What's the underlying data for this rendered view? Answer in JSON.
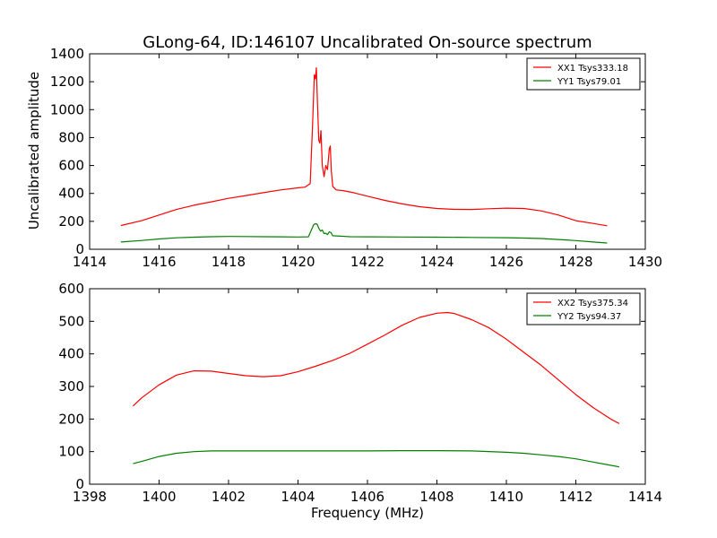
{
  "chart_data": [
    {
      "type": "line",
      "title": "GLong-64, ID:146107 Uncalibrated On-source spectrum",
      "xlabel": "",
      "ylabel": "Uncalibrated amplitude",
      "xlim": [
        1414,
        1430
      ],
      "ylim": [
        0,
        1400
      ],
      "xticks": [
        "1414",
        "1416",
        "1418",
        "1420",
        "1422",
        "1424",
        "1426",
        "1428",
        "1430"
      ],
      "yticks": [
        "0",
        "200",
        "400",
        "600",
        "800",
        "1000",
        "1200",
        "1400"
      ],
      "legend_position": "top-right",
      "series": [
        {
          "name": "XX1 Tsys333.18",
          "color": "#ff0000",
          "x": [
            1414.9,
            1415.5,
            1416.0,
            1416.5,
            1417.0,
            1417.5,
            1418.0,
            1418.5,
            1419.0,
            1419.5,
            1420.0,
            1420.2,
            1420.35,
            1420.42,
            1420.47,
            1420.5,
            1420.53,
            1420.56,
            1420.6,
            1420.63,
            1420.66,
            1420.7,
            1420.75,
            1420.8,
            1420.85,
            1420.9,
            1420.93,
            1420.96,
            1421.0,
            1421.1,
            1421.3,
            1421.6,
            1422.0,
            1422.5,
            1423.0,
            1423.5,
            1424.0,
            1424.5,
            1425.0,
            1425.5,
            1426.0,
            1426.5,
            1427.0,
            1427.5,
            1428.0,
            1428.5,
            1428.9
          ],
          "y": [
            170,
            205,
            245,
            285,
            315,
            340,
            365,
            385,
            405,
            425,
            440,
            445,
            470,
            900,
            1250,
            1220,
            1300,
            1050,
            780,
            760,
            850,
            600,
            520,
            600,
            570,
            720,
            740,
            560,
            450,
            425,
            420,
            405,
            380,
            350,
            325,
            305,
            292,
            286,
            285,
            290,
            295,
            292,
            275,
            245,
            205,
            185,
            168
          ]
        },
        {
          "name": "YY1 Tsys79.01",
          "color": "#008000",
          "x": [
            1414.9,
            1415.5,
            1416.0,
            1416.5,
            1417.0,
            1417.5,
            1418.0,
            1418.5,
            1419.0,
            1419.5,
            1420.0,
            1420.3,
            1420.45,
            1420.5,
            1420.55,
            1420.6,
            1420.65,
            1420.7,
            1420.75,
            1420.8,
            1420.85,
            1420.9,
            1420.95,
            1421.0,
            1421.5,
            1422.0,
            1423.0,
            1424.0,
            1425.0,
            1426.0,
            1426.5,
            1427.0,
            1427.5,
            1428.0,
            1428.5,
            1428.9
          ],
          "y": [
            52,
            63,
            74,
            82,
            87,
            90,
            92,
            91,
            90,
            89,
            88,
            89,
            175,
            183,
            180,
            150,
            130,
            138,
            112,
            115,
            105,
            125,
            120,
            97,
            90,
            89,
            88,
            87,
            85,
            83,
            80,
            77,
            70,
            62,
            52,
            45
          ]
        }
      ]
    },
    {
      "type": "line",
      "title": "",
      "xlabel": "Frequency (MHz)",
      "ylabel": "",
      "xlim": [
        1398,
        1414
      ],
      "ylim": [
        0,
        600
      ],
      "xticks": [
        "1398",
        "1400",
        "1402",
        "1404",
        "1406",
        "1408",
        "1410",
        "1412",
        "1414"
      ],
      "yticks": [
        "0",
        "100",
        "200",
        "300",
        "400",
        "500",
        "600"
      ],
      "legend_position": "top-right",
      "series": [
        {
          "name": "XX2 Tsys375.34",
          "color": "#ff0000",
          "x": [
            1399.25,
            1399.5,
            1400.0,
            1400.5,
            1401.0,
            1401.5,
            1402.0,
            1402.5,
            1403.0,
            1403.5,
            1404.0,
            1404.5,
            1405.0,
            1405.5,
            1406.0,
            1406.5,
            1407.0,
            1407.5,
            1408.0,
            1408.3,
            1408.5,
            1409.0,
            1409.5,
            1410.0,
            1410.5,
            1411.0,
            1411.5,
            1412.0,
            1412.5,
            1413.0,
            1413.25
          ],
          "y": [
            240,
            265,
            305,
            335,
            348,
            347,
            340,
            333,
            330,
            333,
            345,
            362,
            380,
            402,
            430,
            458,
            488,
            512,
            525,
            527,
            524,
            505,
            480,
            445,
            405,
            365,
            320,
            275,
            235,
            200,
            186
          ]
        },
        {
          "name": "YY2 Tsys94.37",
          "color": "#008000",
          "x": [
            1399.25,
            1399.5,
            1400.0,
            1400.5,
            1401.0,
            1401.5,
            1402.0,
            1402.5,
            1403.0,
            1404.0,
            1405.0,
            1406.0,
            1407.0,
            1408.0,
            1409.0,
            1410.0,
            1410.5,
            1411.0,
            1411.5,
            1412.0,
            1412.5,
            1413.0,
            1413.25
          ],
          "y": [
            63,
            70,
            85,
            95,
            100,
            102,
            102,
            102,
            102,
            102,
            102,
            102,
            103,
            103,
            102,
            98,
            95,
            90,
            85,
            78,
            68,
            58,
            53
          ]
        }
      ]
    }
  ]
}
